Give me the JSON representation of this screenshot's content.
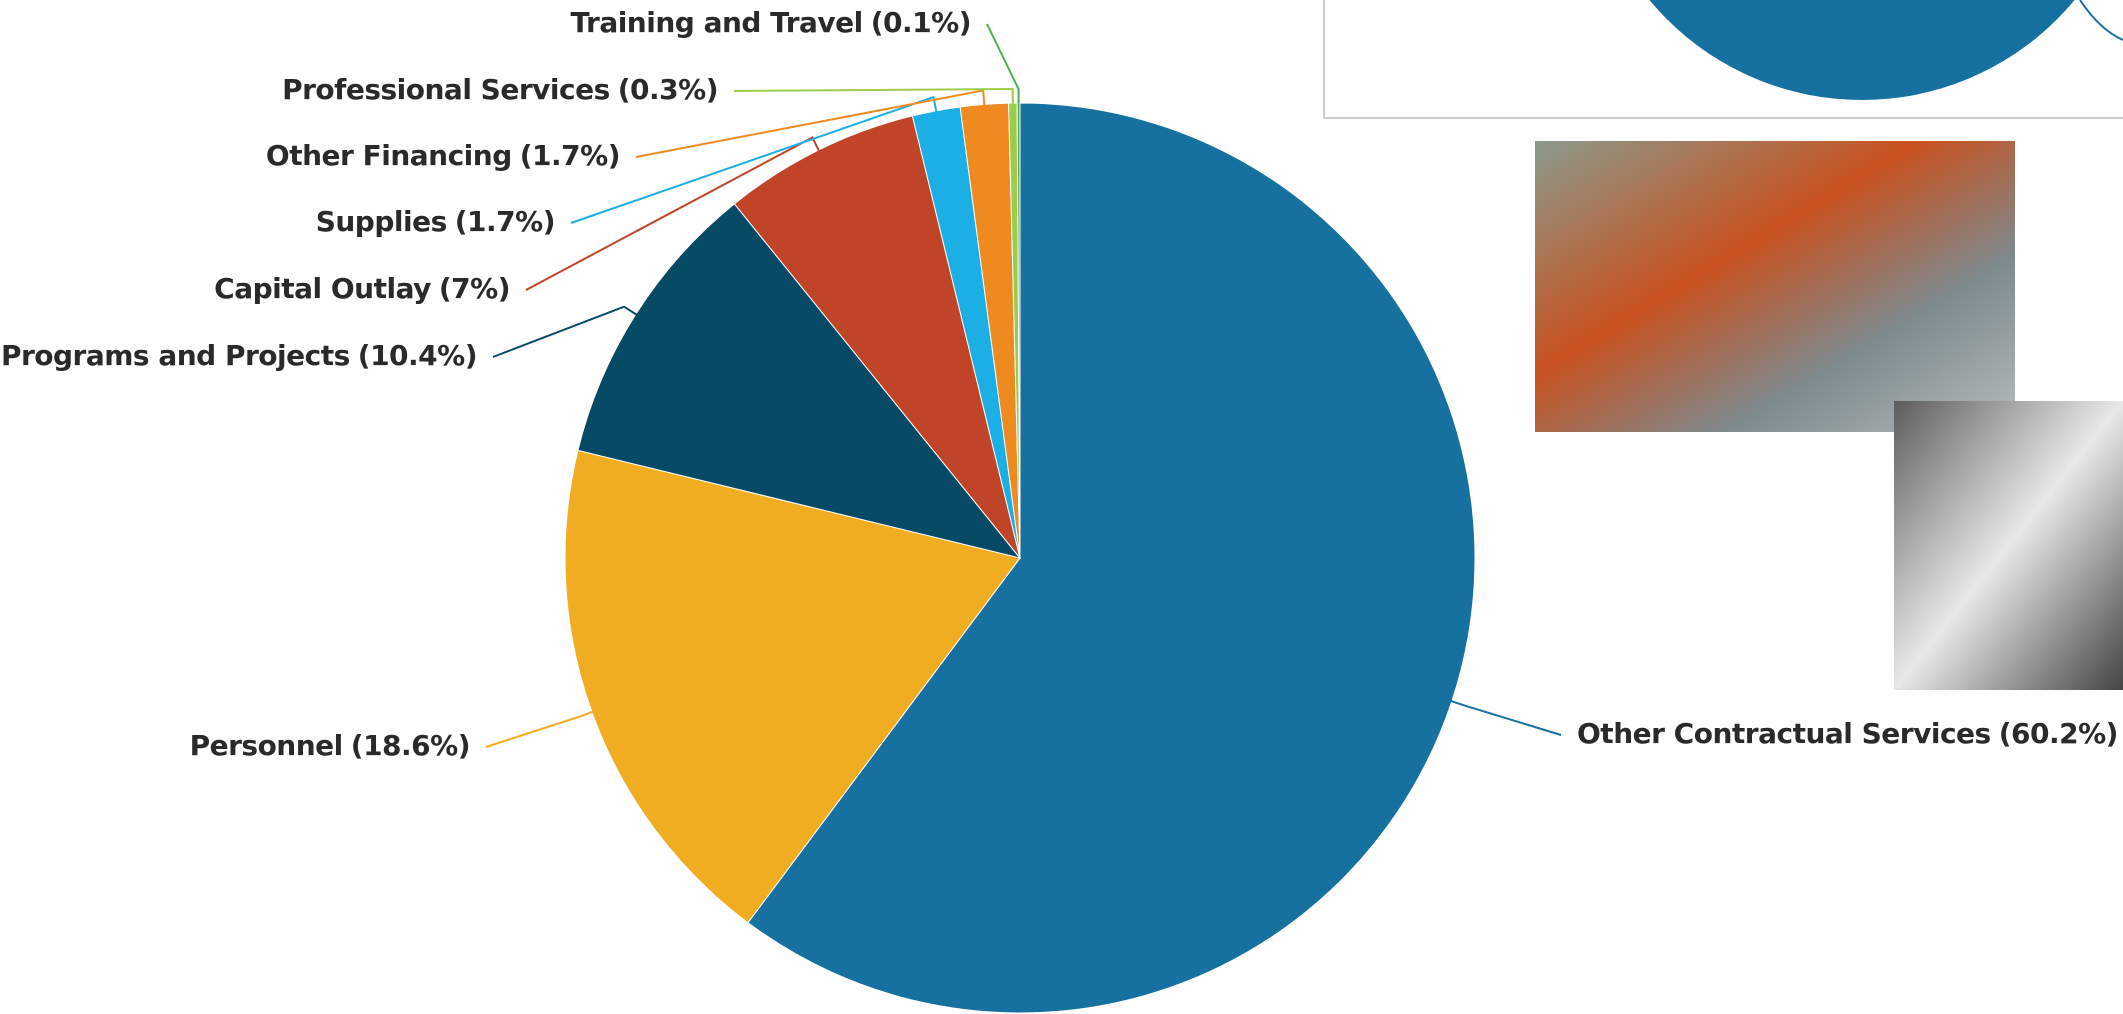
{
  "chart_data": {
    "type": "pie",
    "categories": [
      "Other Contractual Services",
      "Personnel",
      "Programs and Projects",
      "Capital Outlay",
      "Supplies",
      "Other Financing",
      "Professional Services",
      "Training and Travel"
    ],
    "values": [
      60.2,
      18.6,
      10.4,
      7,
      1.7,
      1.7,
      0.3,
      0.1
    ],
    "value_labels": [
      "(60.2%)",
      "(18.6%)",
      "(10.4%)",
      "(7%)",
      "(1.7%)",
      "(1.7%)",
      "(0.3%)",
      "(0.1%)"
    ],
    "colors": [
      "#1670a0",
      "#f0ad22",
      "#064a66",
      "#c04427",
      "#1bafe6",
      "#ee8a1f",
      "#9ccc4a",
      "#4fae4f"
    ]
  }
}
